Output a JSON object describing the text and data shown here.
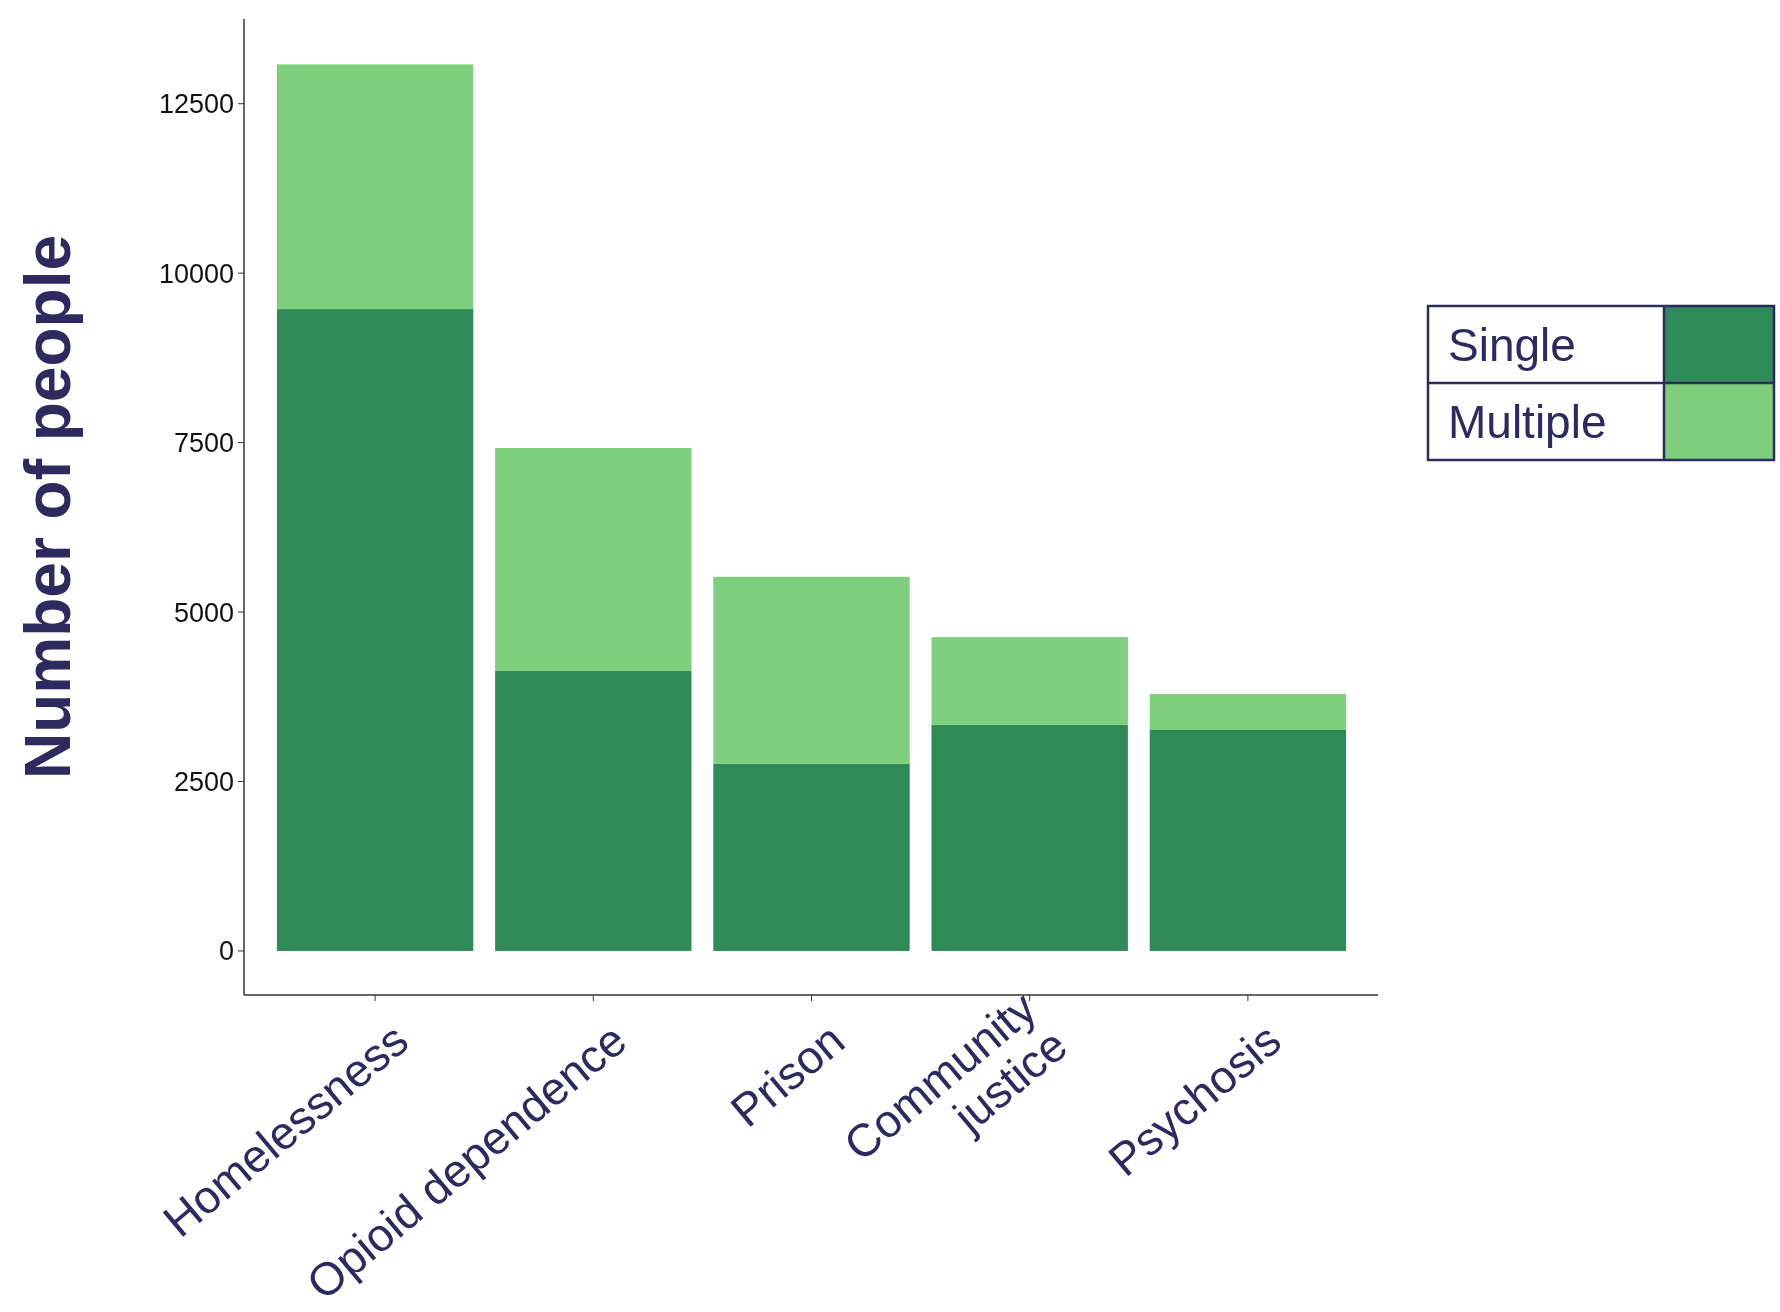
{
  "chart_data": {
    "type": "bar",
    "stacked": true,
    "ylabel": "Number of people",
    "categories": [
      "Homelessness",
      "Opioid dependence",
      "Prison",
      "Community\njustice",
      "Psychosis"
    ],
    "series": [
      {
        "name": "Single",
        "color": "#2e8b57",
        "values": [
          9470,
          4130,
          2760,
          3340,
          3260
        ]
      },
      {
        "name": "Multiple",
        "color": "#7dce7d",
        "values": [
          3610,
          3290,
          2760,
          1290,
          530
        ]
      }
    ],
    "ylim": [
      -650,
      13750
    ],
    "yticks": [
      0,
      2500,
      5000,
      7500,
      10000,
      12500
    ],
    "grid": false,
    "legend": "right"
  }
}
